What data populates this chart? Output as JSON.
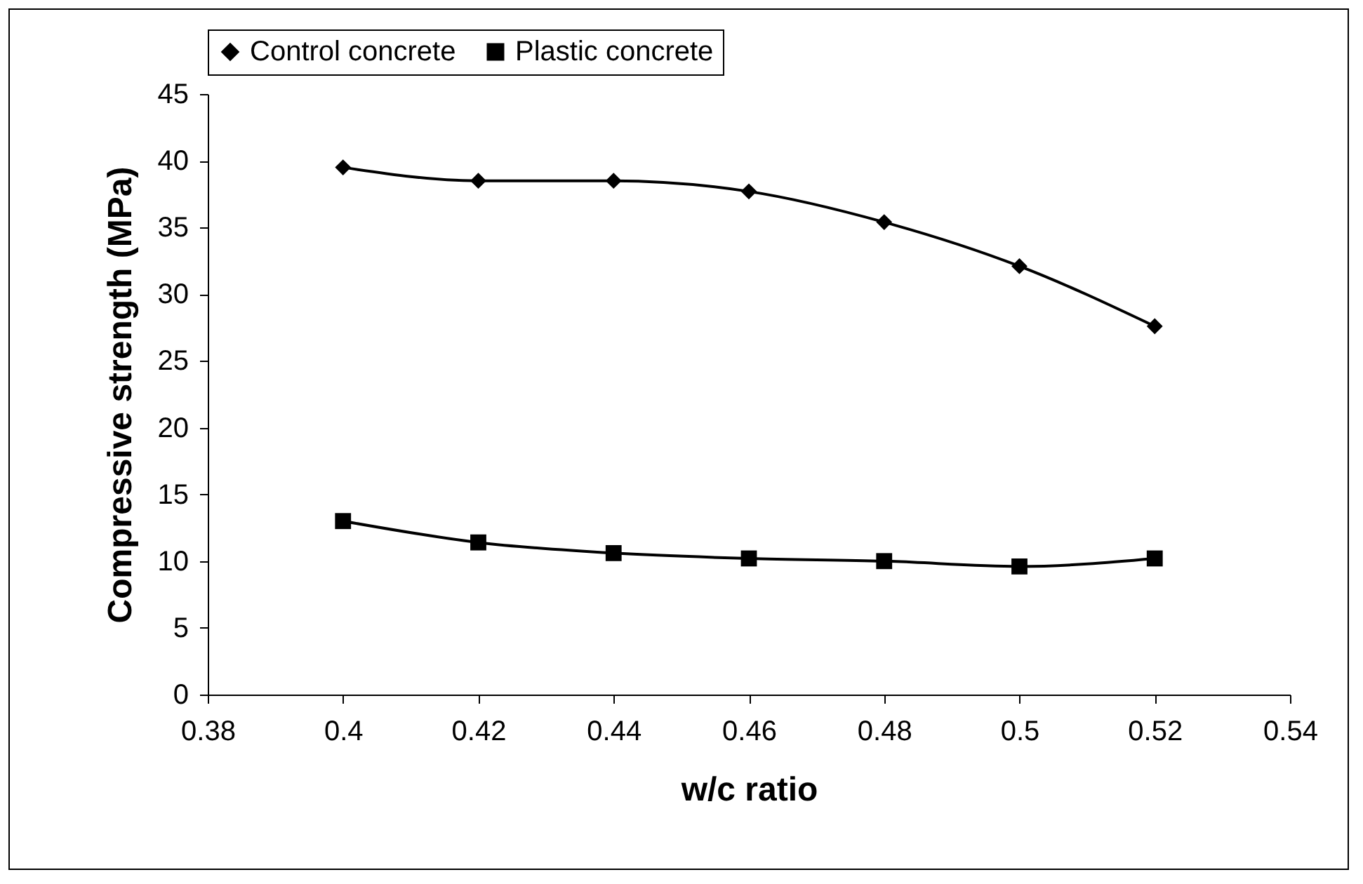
{
  "chart_data": {
    "type": "line",
    "xlabel": "w/c ratio",
    "ylabel": "Compressive strength (MPa)",
    "x": [
      0.4,
      0.42,
      0.44,
      0.46,
      0.48,
      0.5,
      0.52
    ],
    "series": [
      {
        "name": "Control concrete",
        "color": "#000000",
        "marker": "diamond",
        "values": [
          39.5,
          38.5,
          38.5,
          37.7,
          35.4,
          32.1,
          27.6
        ]
      },
      {
        "name": "Plastic concrete",
        "color": "#000000",
        "marker": "square",
        "values": [
          13,
          11.4,
          10.6,
          10.2,
          10,
          9.6,
          10.2
        ]
      }
    ],
    "xlim": [
      0.38,
      0.54
    ],
    "xticks": [
      0.38,
      0.4,
      0.42,
      0.44,
      0.46,
      0.48,
      0.5,
      0.52,
      0.54
    ],
    "ylim": [
      0,
      45
    ],
    "yticks": [
      0,
      5,
      10,
      15,
      20,
      25,
      30,
      35,
      40,
      45
    ],
    "grid": false,
    "legend": "top",
    "line_style": "solid"
  }
}
